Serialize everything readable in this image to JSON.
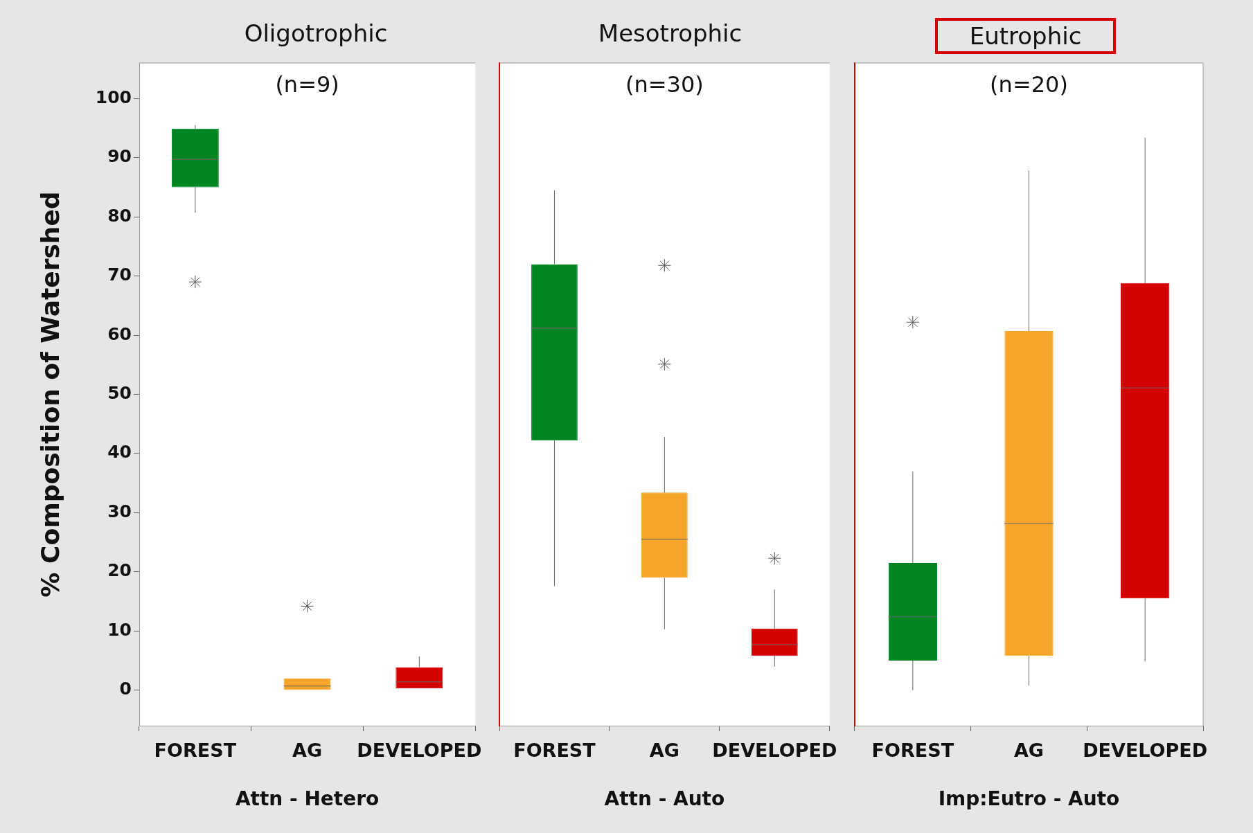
{
  "chart_data": [
    {
      "type": "box",
      "title": "Oligotrophic",
      "subtitle": "(n=9)",
      "xlabel": "Attn - Hetero",
      "ylabel": "% Composition of Watershed",
      "categories": [
        "FOREST",
        "AG",
        "DEVELOPED"
      ],
      "colors": [
        "#008523",
        "#f7a529",
        "#d40000"
      ],
      "boxes": [
        {
          "low": 80.7,
          "q1": 85,
          "median": 89.7,
          "q3": 94.9,
          "high": 95.5,
          "outliers": [
            69
          ]
        },
        {
          "low": 0,
          "q1": 0,
          "median": 0.7,
          "q3": 2,
          "high": 2,
          "outliers": [
            14.2
          ]
        },
        {
          "low": 0.3,
          "q1": 0.3,
          "median": 1.4,
          "q3": 3.9,
          "high": 5.7
        }
      ],
      "ylim": [
        -6,
        106
      ],
      "yticks": [
        0,
        10,
        20,
        30,
        40,
        50,
        60,
        70,
        80,
        90,
        100
      ]
    },
    {
      "type": "box",
      "title": "Mesotrophic",
      "subtitle": "(n=30)",
      "xlabel": "Attn - Auto",
      "categories": [
        "FOREST",
        "AG",
        "DEVELOPED"
      ],
      "colors": [
        "#008523",
        "#f7a529",
        "#d40000"
      ],
      "boxes": [
        {
          "low": 17.6,
          "q1": 42.2,
          "median": 61.2,
          "q3": 72,
          "high": 84.5
        },
        {
          "low": 10.3,
          "q1": 19,
          "median": 25.5,
          "q3": 33.4,
          "high": 42.8,
          "outliers": [
            71.8,
            55.1
          ]
        },
        {
          "low": 4,
          "q1": 5.8,
          "median": 7.7,
          "q3": 10.4,
          "high": 17,
          "outliers": [
            22.3
          ]
        }
      ],
      "ylim": [
        -6,
        106
      ],
      "yticks": [
        0,
        10,
        20,
        30,
        40,
        50,
        60,
        70,
        80,
        90,
        100
      ],
      "tick_labels": "x"
    },
    {
      "type": "box",
      "title": "Eutrophic",
      "subtitle": "(n=20)",
      "xlabel": "Imp:Eutro - Auto",
      "categories": [
        "FOREST",
        "AG",
        "DEVELOPED"
      ],
      "colors": [
        "#008523",
        "#f7a529",
        "#d40000"
      ],
      "boxes": [
        {
          "low": 0,
          "q1": 5,
          "median": 12.4,
          "q3": 21.5,
          "high": 37,
          "outliers": [
            62.2
          ]
        },
        {
          "low": 0.8,
          "q1": 5.8,
          "median": 28.2,
          "q3": 60.7,
          "high": 87.8
        },
        {
          "low": 4.9,
          "q1": 15.5,
          "median": 51.1,
          "q3": 68.8,
          "high": 93.4
        }
      ],
      "ylim": [
        -6,
        106
      ],
      "yticks": [
        0,
        10,
        20,
        30,
        40,
        50,
        60,
        70,
        80,
        90,
        100
      ],
      "tick_labels": "x"
    }
  ]
}
